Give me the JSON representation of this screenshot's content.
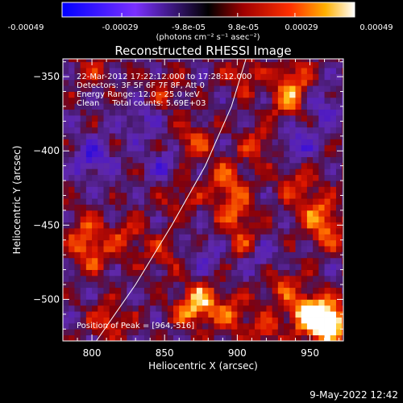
{
  "colorbar": {
    "tick_labels": [
      "-0.00049",
      "-0.00029",
      "-9.8e-05",
      "9.8e-05",
      "0.00029",
      "0.00049"
    ],
    "tick_values": [
      -0.00049,
      -0.00029,
      -9.8e-05,
      9.8e-05,
      0.00029,
      0.00049
    ],
    "range": [
      -0.00049,
      0.00049
    ],
    "unit_label": "(photons cm⁻² s⁻¹ asec⁻²)"
  },
  "chart_data": {
    "type": "heatmap",
    "title": "Reconstructed RHESSI Image",
    "xlabel": "Heliocentric X (arcsec)",
    "ylabel": "Heliocentric Y (arcsec)",
    "xlim": [
      780,
      973
    ],
    "ylim": [
      -528,
      -338
    ],
    "x_ticks": [
      800,
      850,
      900,
      950
    ],
    "x_tick_labels": [
      "800",
      "850",
      "900",
      "950"
    ],
    "y_ticks": [
      -350,
      -400,
      -450,
      -500
    ],
    "y_tick_labels": [
      "−350",
      "−400",
      "−450",
      "−500"
    ],
    "annotations": [
      "22-Mar-2012 17:22:12.000 to 17:28:12.000",
      "Detectors: 3F 5F 6F 7F 8F, Att 0",
      "Energy Range: 12.0 - 25.0 keV",
      "Clean     Total counts: 5.69E+03"
    ],
    "peak_label": "Position of Peak = [964,-516]",
    "peak_position": [
      964,
      -516
    ],
    "limb_curve": [
      [
        803,
        -528
      ],
      [
        830,
        -490
      ],
      [
        855,
        -450
      ],
      [
        878,
        -410
      ],
      [
        896,
        -370
      ],
      [
        906,
        -338
      ]
    ],
    "bright_regions": [
      {
        "x": 964,
        "y": -516,
        "level": 1.0
      },
      {
        "x": 955,
        "y": -512,
        "level": 0.85
      },
      {
        "x": 945,
        "y": -508,
        "level": 0.55
      },
      {
        "x": 875,
        "y": -500,
        "level": 0.6
      },
      {
        "x": 868,
        "y": -508,
        "level": 0.5
      },
      {
        "x": 895,
        "y": -510,
        "level": 0.5
      },
      {
        "x": 892,
        "y": -420,
        "level": 0.6
      },
      {
        "x": 898,
        "y": -440,
        "level": 0.55
      },
      {
        "x": 870,
        "y": -395,
        "level": 0.5
      },
      {
        "x": 905,
        "y": -462,
        "level": 0.5
      },
      {
        "x": 935,
        "y": -368,
        "level": 0.5
      },
      {
        "x": 938,
        "y": -352,
        "level": 0.55
      },
      {
        "x": 905,
        "y": -348,
        "level": 0.45
      },
      {
        "x": 955,
        "y": -440,
        "level": 0.55
      },
      {
        "x": 962,
        "y": -455,
        "level": 0.5
      },
      {
        "x": 940,
        "y": -420,
        "level": 0.45
      },
      {
        "x": 795,
        "y": -455,
        "level": 0.5
      },
      {
        "x": 800,
        "y": -470,
        "level": 0.45
      },
      {
        "x": 812,
        "y": -515,
        "level": 0.5
      },
      {
        "x": 825,
        "y": -458,
        "level": 0.45
      },
      {
        "x": 848,
        "y": -470,
        "level": 0.35
      },
      {
        "x": 850,
        "y": -360,
        "level": 0.35
      },
      {
        "x": 800,
        "y": -345,
        "level": 0.3
      },
      {
        "x": 860,
        "y": -430,
        "level": 0.4
      },
      {
        "x": 915,
        "y": -395,
        "level": 0.45
      },
      {
        "x": 930,
        "y": -490,
        "level": 0.45
      },
      {
        "x": 918,
        "y": -520,
        "level": 0.45
      }
    ],
    "dark_regions": [
      {
        "x": 800,
        "y": -405,
        "level": -0.55
      },
      {
        "x": 940,
        "y": -395,
        "level": -0.5
      },
      {
        "x": 915,
        "y": -470,
        "level": -0.45
      },
      {
        "x": 850,
        "y": -410,
        "level": -0.4
      },
      {
        "x": 835,
        "y": -380,
        "level": -0.35
      },
      {
        "x": 960,
        "y": -370,
        "level": -0.4
      },
      {
        "x": 880,
        "y": -470,
        "level": -0.3
      }
    ]
  },
  "footer": {
    "date": "9-May-2022 12:42"
  }
}
